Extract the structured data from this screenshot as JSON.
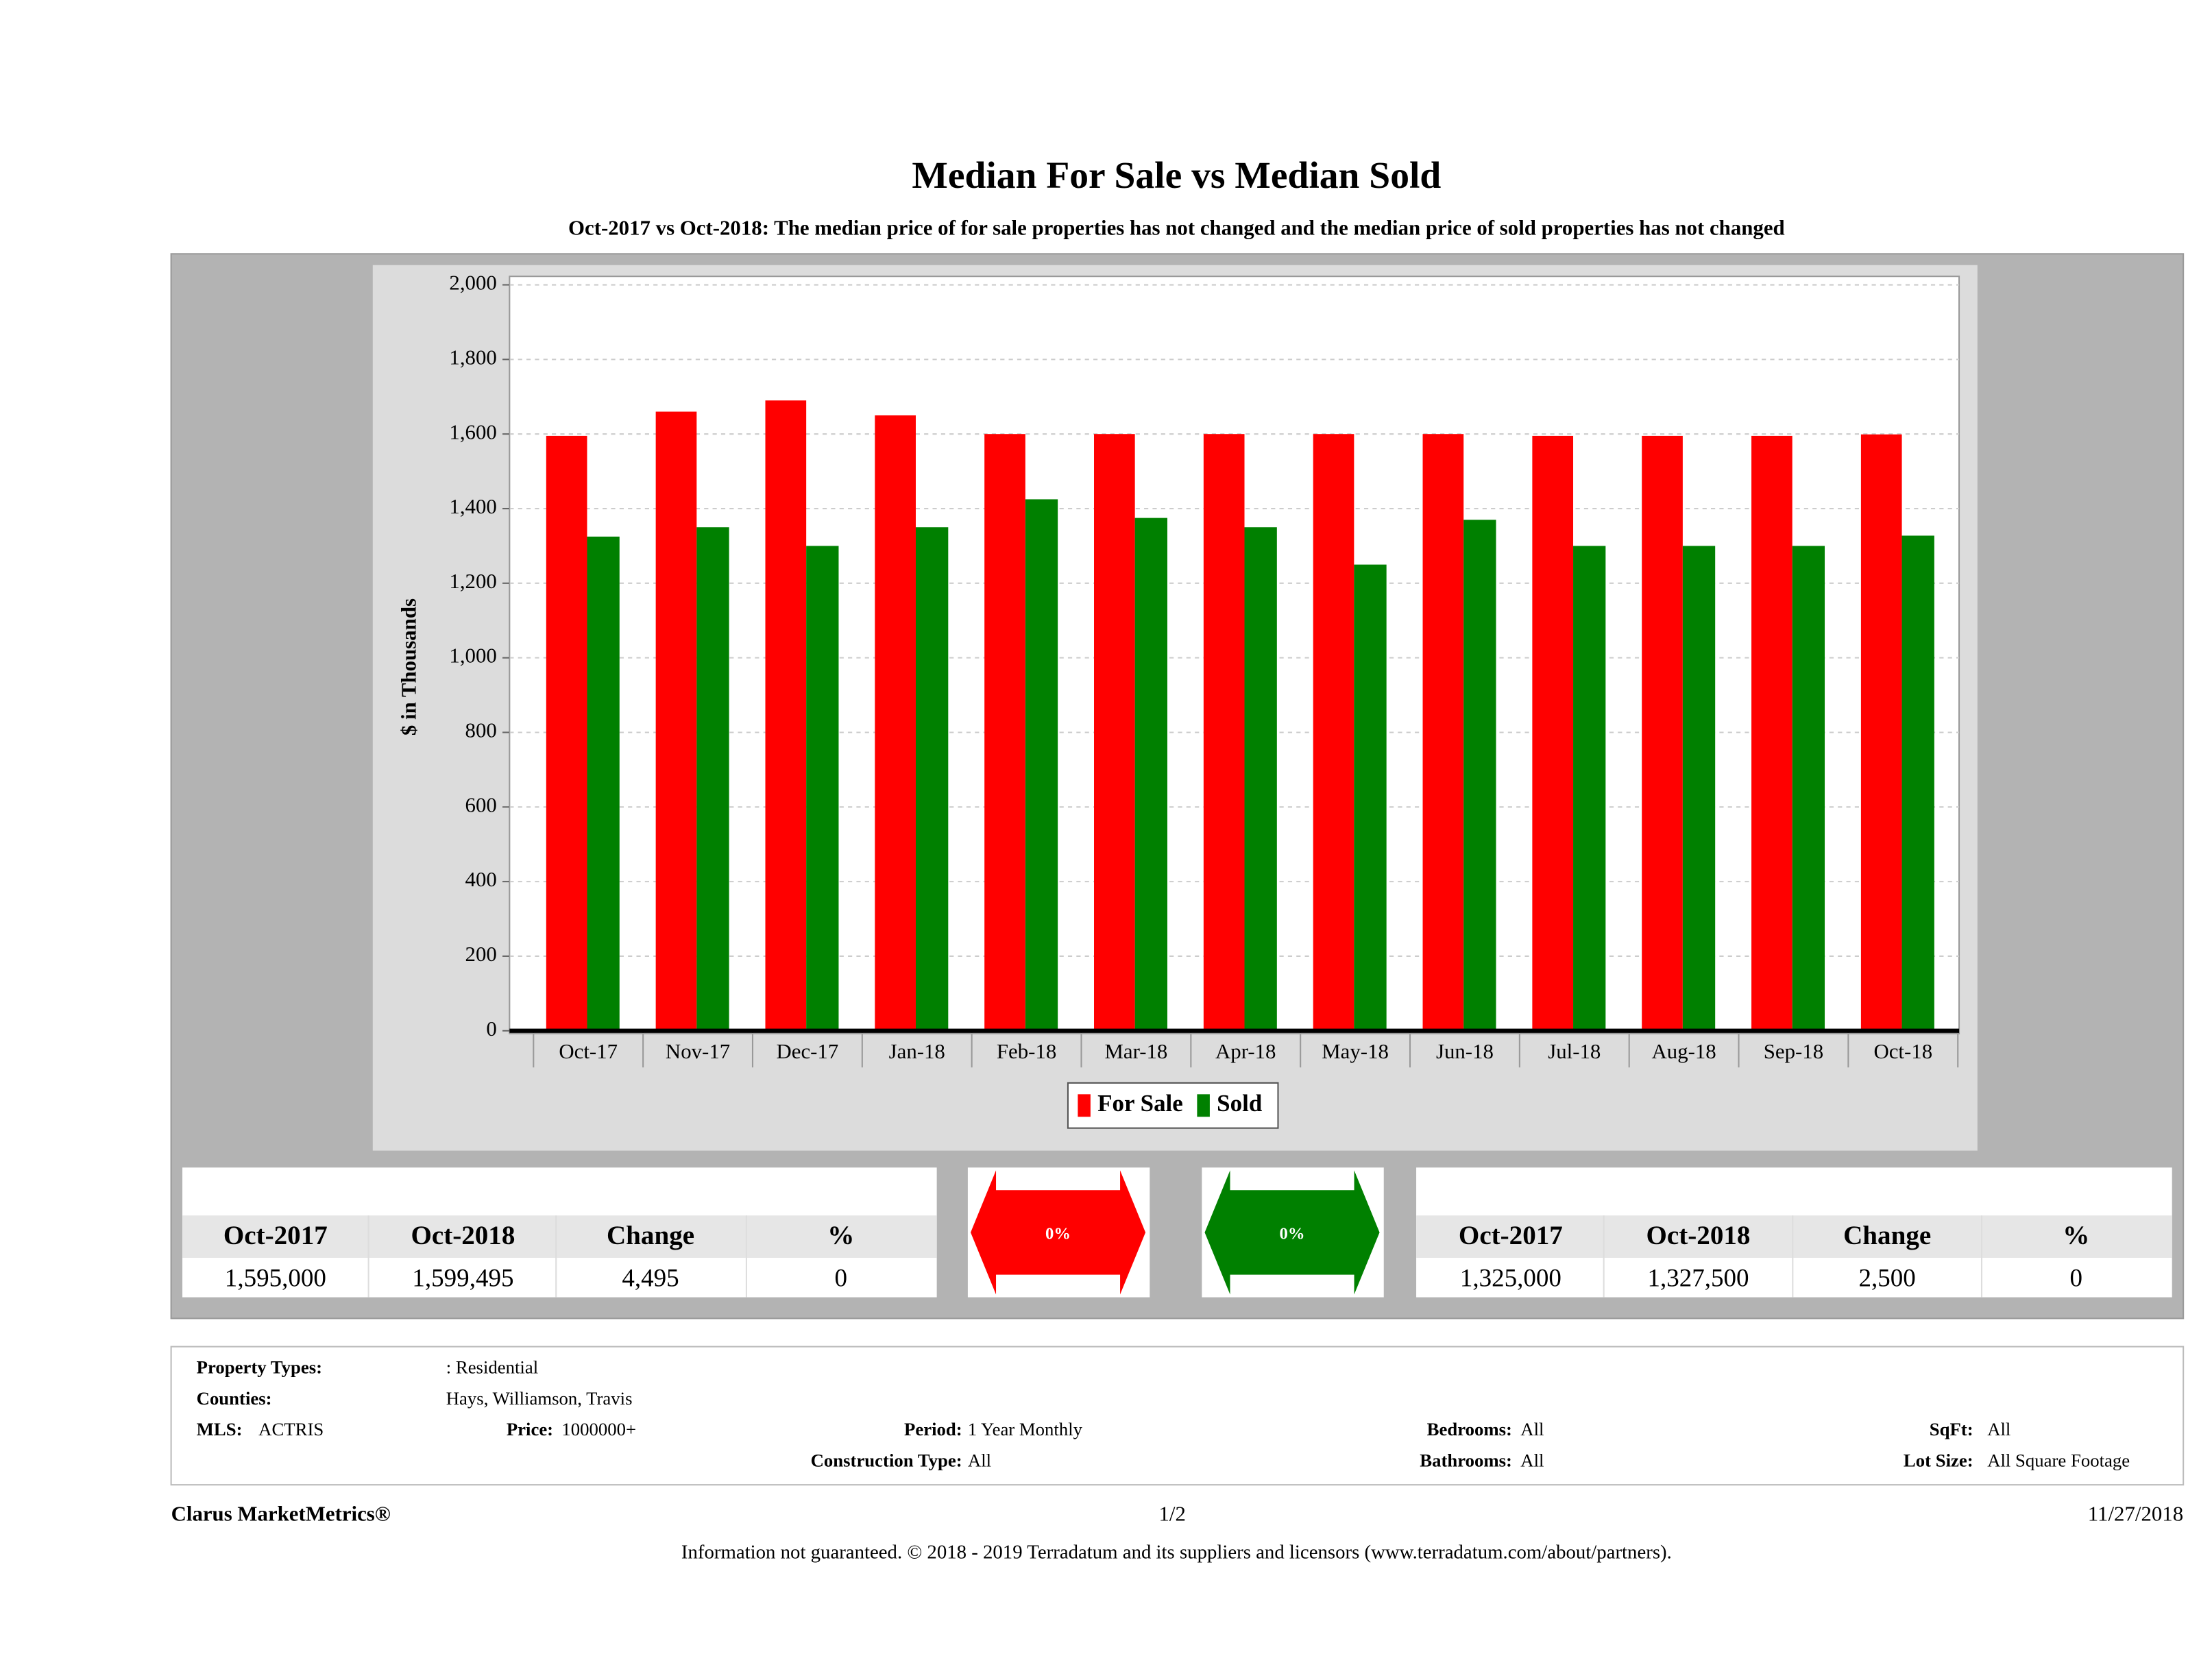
{
  "chart_data": {
    "type": "bar",
    "title": "Median For Sale vs Median Sold",
    "subtitle": "Oct-2017 vs Oct-2018: The median price of for sale properties has not changed and the median price of sold properties has not changed",
    "y_label": "$ in Thousands",
    "categories": [
      "Oct-17",
      "Nov-17",
      "Dec-17",
      "Jan-18",
      "Feb-18",
      "Mar-18",
      "Apr-18",
      "May-18",
      "Jun-18",
      "Jul-18",
      "Aug-18",
      "Sep-18",
      "Oct-18"
    ],
    "series": [
      {
        "name": "For Sale",
        "color": "#ff0000",
        "values": [
          1595,
          1660,
          1690,
          1650,
          1600,
          1600,
          1600,
          1600,
          1600,
          1595,
          1595,
          1595,
          1599
        ]
      },
      {
        "name": "Sold",
        "color": "#008000",
        "values": [
          1325,
          1350,
          1300,
          1350,
          1425,
          1375,
          1350,
          1250,
          1370,
          1300,
          1300,
          1300,
          1327.5
        ]
      }
    ],
    "ylim": [
      0,
      2020
    ],
    "yticks": [
      0,
      200,
      400,
      600,
      800,
      {
        "value": 1000,
        "label": "1,000"
      },
      {
        "value": 1200,
        "label": "1,200"
      },
      {
        "value": 1400,
        "label": "1,400"
      },
      {
        "value": 1600,
        "label": "1,600"
      },
      {
        "value": 1800,
        "label": "1,800"
      },
      {
        "value": 2000,
        "label": "2,000"
      }
    ],
    "grid": true
  },
  "for_sale_summary": {
    "headers": [
      "Oct-2017",
      "Oct-2018",
      "Change",
      "%"
    ],
    "row": [
      "1,595,000",
      "1,599,495",
      "4,495",
      "0"
    ],
    "arrow": "0%"
  },
  "sold_summary": {
    "headers": [
      "Oct-2017",
      "Oct-2018",
      "Change",
      "%"
    ],
    "row": [
      "1,325,000",
      "1,327,500",
      "2,500",
      "0"
    ],
    "arrow": "0%"
  },
  "criteria": [
    {
      "label": "Property Types:",
      "value": ": Residential"
    },
    {
      "label": "Counties:",
      "value": "Hays, Williamson, Travis"
    },
    {
      "label": "MLS:",
      "value": "ACTRIS"
    },
    {
      "label": "Price:",
      "value": "1000000+"
    },
    {
      "label": "Period:",
      "value": "1 Year Monthly"
    },
    {
      "label": "Bedrooms:",
      "value": "All"
    },
    {
      "label": "SqFt:",
      "value": "All"
    },
    {
      "label": "Construction Type:",
      "value": "All"
    },
    {
      "label": "Bathrooms:",
      "value": "All"
    },
    {
      "label": "Lot Size:",
      "value": "All Square Footage"
    }
  ],
  "footer": {
    "brand": "Clarus MarketMetrics®",
    "page": "1/2",
    "date": "11/27/2018",
    "disclaimer": "Information not guaranteed. © 2018 - 2019 Terradatum and its suppliers and licensors (www.terradatum.com/about/partners)."
  }
}
